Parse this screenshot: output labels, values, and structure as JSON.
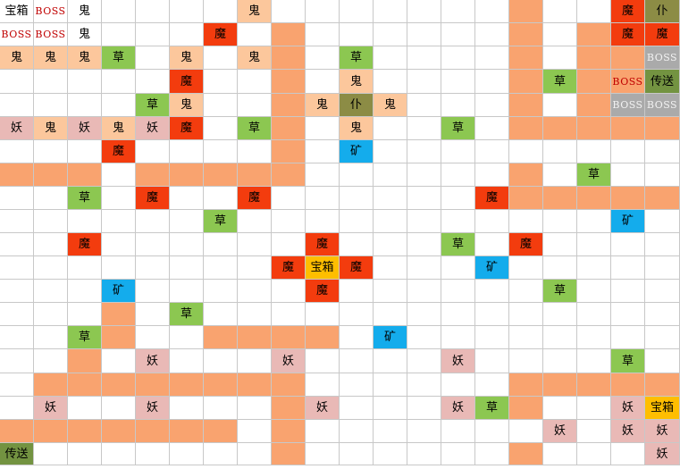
{
  "grid": {
    "rows": 20,
    "cols": 20
  },
  "colors": {
    "path": "#f9a36f",
    "ghost": "#fcc79c",
    "demon": "#f33c0e",
    "grass": "#8cc751",
    "spirit": "#e9b9b6",
    "mine": "#14acec",
    "teleport": "#739341",
    "servant": "#8c8c45",
    "boss_gray": "#aaaaaa",
    "treasure_gold": "#ffbe00",
    "empty": "#ffffff"
  },
  "legend_types": {
    "path": "path-cell",
    "ghost": "ghost-cell",
    "demon": "demon-cell",
    "grass": "grass-cell",
    "spirit": "spirit-cell",
    "mine": "mine-cell",
    "teleport": "teleport-cell",
    "servant": "servant-cell",
    "boss_gray": "boss-cell",
    "boss_red": "boss-cell",
    "treasure": "treasure-cell",
    "treasure_gold": "treasure-cell"
  },
  "cells": [
    {
      "r": 0,
      "c": 0,
      "t": "treasure",
      "text": "宝箱"
    },
    {
      "r": 0,
      "c": 1,
      "t": "boss_red",
      "text": "BOSS"
    },
    {
      "r": 0,
      "c": 2,
      "t": "ghost_plain",
      "text": "鬼"
    },
    {
      "r": 0,
      "c": 7,
      "t": "ghost",
      "text": "鬼"
    },
    {
      "r": 0,
      "c": 15,
      "t": "path"
    },
    {
      "r": 0,
      "c": 18,
      "t": "demon",
      "text": "魔"
    },
    {
      "r": 0,
      "c": 19,
      "t": "servant",
      "text": "仆"
    },
    {
      "r": 1,
      "c": 0,
      "t": "boss_red",
      "text": "BOSS"
    },
    {
      "r": 1,
      "c": 1,
      "t": "boss_red",
      "text": "BOSS"
    },
    {
      "r": 1,
      "c": 2,
      "t": "ghost_plain",
      "text": "鬼"
    },
    {
      "r": 1,
      "c": 6,
      "t": "demon",
      "text": "魔"
    },
    {
      "r": 1,
      "c": 8,
      "t": "path"
    },
    {
      "r": 1,
      "c": 15,
      "t": "path"
    },
    {
      "r": 1,
      "c": 17,
      "t": "path"
    },
    {
      "r": 1,
      "c": 18,
      "t": "demon",
      "text": "魔"
    },
    {
      "r": 1,
      "c": 19,
      "t": "demon",
      "text": "魔"
    },
    {
      "r": 2,
      "c": 0,
      "t": "ghost",
      "text": "鬼"
    },
    {
      "r": 2,
      "c": 1,
      "t": "ghost",
      "text": "鬼"
    },
    {
      "r": 2,
      "c": 2,
      "t": "ghost",
      "text": "鬼"
    },
    {
      "r": 2,
      "c": 3,
      "t": "grass",
      "text": "草"
    },
    {
      "r": 2,
      "c": 5,
      "t": "ghost",
      "text": "鬼"
    },
    {
      "r": 2,
      "c": 7,
      "t": "ghost",
      "text": "鬼"
    },
    {
      "r": 2,
      "c": 8,
      "t": "path"
    },
    {
      "r": 2,
      "c": 10,
      "t": "grass",
      "text": "草"
    },
    {
      "r": 2,
      "c": 15,
      "t": "path"
    },
    {
      "r": 2,
      "c": 17,
      "t": "path"
    },
    {
      "r": 2,
      "c": 18,
      "t": "path"
    },
    {
      "r": 2,
      "c": 19,
      "t": "boss_gray",
      "text": "BOSS"
    },
    {
      "r": 3,
      "c": 5,
      "t": "demon",
      "text": "魔"
    },
    {
      "r": 3,
      "c": 8,
      "t": "path"
    },
    {
      "r": 3,
      "c": 10,
      "t": "ghost",
      "text": "鬼"
    },
    {
      "r": 3,
      "c": 15,
      "t": "path"
    },
    {
      "r": 3,
      "c": 16,
      "t": "grass",
      "text": "草"
    },
    {
      "r": 3,
      "c": 17,
      "t": "path"
    },
    {
      "r": 3,
      "c": 18,
      "t": "path",
      "text": "BOSS",
      "style": "boss"
    },
    {
      "r": 3,
      "c": 19,
      "t": "teleport",
      "text": "传送"
    },
    {
      "r": 4,
      "c": 4,
      "t": "grass",
      "text": "草"
    },
    {
      "r": 4,
      "c": 5,
      "t": "ghost",
      "text": "鬼"
    },
    {
      "r": 4,
      "c": 8,
      "t": "path"
    },
    {
      "r": 4,
      "c": 9,
      "t": "ghost",
      "text": "鬼"
    },
    {
      "r": 4,
      "c": 10,
      "t": "servant",
      "text": "仆"
    },
    {
      "r": 4,
      "c": 11,
      "t": "ghost",
      "text": "鬼"
    },
    {
      "r": 4,
      "c": 15,
      "t": "path"
    },
    {
      "r": 4,
      "c": 17,
      "t": "path"
    },
    {
      "r": 4,
      "c": 18,
      "t": "boss_gray",
      "text": "BOSS"
    },
    {
      "r": 4,
      "c": 19,
      "t": "boss_gray",
      "text": "BOSS"
    },
    {
      "r": 5,
      "c": 0,
      "t": "spirit",
      "text": "妖"
    },
    {
      "r": 5,
      "c": 1,
      "t": "ghost",
      "text": "鬼"
    },
    {
      "r": 5,
      "c": 2,
      "t": "spirit",
      "text": "妖"
    },
    {
      "r": 5,
      "c": 3,
      "t": "ghost",
      "text": "鬼"
    },
    {
      "r": 5,
      "c": 4,
      "t": "spirit",
      "text": "妖"
    },
    {
      "r": 5,
      "c": 5,
      "t": "demon",
      "text": "魔"
    },
    {
      "r": 5,
      "c": 7,
      "t": "grass",
      "text": "草"
    },
    {
      "r": 5,
      "c": 8,
      "t": "path"
    },
    {
      "r": 5,
      "c": 10,
      "t": "ghost",
      "text": "鬼"
    },
    {
      "r": 5,
      "c": 13,
      "t": "grass",
      "text": "草"
    },
    {
      "r": 5,
      "c": 15,
      "t": "path"
    },
    {
      "r": 5,
      "c": 16,
      "t": "path"
    },
    {
      "r": 5,
      "c": 17,
      "t": "path"
    },
    {
      "r": 5,
      "c": 18,
      "t": "path"
    },
    {
      "r": 5,
      "c": 19,
      "t": "path"
    },
    {
      "r": 6,
      "c": 3,
      "t": "demon",
      "text": "魔"
    },
    {
      "r": 6,
      "c": 8,
      "t": "path"
    },
    {
      "r": 6,
      "c": 10,
      "t": "mine",
      "text": "矿"
    },
    {
      "r": 7,
      "c": 0,
      "t": "path"
    },
    {
      "r": 7,
      "c": 1,
      "t": "path"
    },
    {
      "r": 7,
      "c": 2,
      "t": "path"
    },
    {
      "r": 7,
      "c": 4,
      "t": "path"
    },
    {
      "r": 7,
      "c": 5,
      "t": "path"
    },
    {
      "r": 7,
      "c": 6,
      "t": "path"
    },
    {
      "r": 7,
      "c": 7,
      "t": "path"
    },
    {
      "r": 7,
      "c": 8,
      "t": "path"
    },
    {
      "r": 7,
      "c": 15,
      "t": "path"
    },
    {
      "r": 7,
      "c": 17,
      "t": "grass",
      "text": "草"
    },
    {
      "r": 8,
      "c": 2,
      "t": "grass",
      "text": "草"
    },
    {
      "r": 8,
      "c": 4,
      "t": "demon",
      "text": "魔"
    },
    {
      "r": 8,
      "c": 7,
      "t": "demon",
      "text": "魔"
    },
    {
      "r": 8,
      "c": 14,
      "t": "demon",
      "text": "魔"
    },
    {
      "r": 8,
      "c": 15,
      "t": "path"
    },
    {
      "r": 8,
      "c": 16,
      "t": "path"
    },
    {
      "r": 8,
      "c": 17,
      "t": "path"
    },
    {
      "r": 8,
      "c": 18,
      "t": "path"
    },
    {
      "r": 8,
      "c": 19,
      "t": "path"
    },
    {
      "r": 9,
      "c": 6,
      "t": "grass",
      "text": "草"
    },
    {
      "r": 9,
      "c": 18,
      "t": "mine",
      "text": "矿"
    },
    {
      "r": 10,
      "c": 2,
      "t": "demon",
      "text": "魔"
    },
    {
      "r": 10,
      "c": 9,
      "t": "demon",
      "text": "魔"
    },
    {
      "r": 10,
      "c": 13,
      "t": "grass",
      "text": "草"
    },
    {
      "r": 10,
      "c": 15,
      "t": "demon",
      "text": "魔"
    },
    {
      "r": 11,
      "c": 8,
      "t": "demon",
      "text": "魔"
    },
    {
      "r": 11,
      "c": 9,
      "t": "treasure_gold",
      "text": "宝箱"
    },
    {
      "r": 11,
      "c": 10,
      "t": "demon",
      "text": "魔"
    },
    {
      "r": 11,
      "c": 14,
      "t": "mine",
      "text": "矿"
    },
    {
      "r": 12,
      "c": 3,
      "t": "mine",
      "text": "矿"
    },
    {
      "r": 12,
      "c": 9,
      "t": "demon",
      "text": "魔"
    },
    {
      "r": 12,
      "c": 16,
      "t": "grass",
      "text": "草"
    },
    {
      "r": 13,
      "c": 3,
      "t": "path"
    },
    {
      "r": 13,
      "c": 5,
      "t": "grass",
      "text": "草"
    },
    {
      "r": 14,
      "c": 2,
      "t": "grass",
      "text": "草"
    },
    {
      "r": 14,
      "c": 3,
      "t": "path"
    },
    {
      "r": 14,
      "c": 6,
      "t": "path"
    },
    {
      "r": 14,
      "c": 7,
      "t": "path"
    },
    {
      "r": 14,
      "c": 8,
      "t": "path"
    },
    {
      "r": 14,
      "c": 9,
      "t": "path"
    },
    {
      "r": 14,
      "c": 11,
      "t": "mine",
      "text": "矿"
    },
    {
      "r": 15,
      "c": 2,
      "t": "path"
    },
    {
      "r": 15,
      "c": 4,
      "t": "spirit",
      "text": "妖"
    },
    {
      "r": 15,
      "c": 8,
      "t": "spirit",
      "text": "妖"
    },
    {
      "r": 15,
      "c": 13,
      "t": "spirit",
      "text": "妖"
    },
    {
      "r": 15,
      "c": 18,
      "t": "grass",
      "text": "草"
    },
    {
      "r": 16,
      "c": 1,
      "t": "path"
    },
    {
      "r": 16,
      "c": 2,
      "t": "path"
    },
    {
      "r": 16,
      "c": 3,
      "t": "path"
    },
    {
      "r": 16,
      "c": 4,
      "t": "path"
    },
    {
      "r": 16,
      "c": 5,
      "t": "path"
    },
    {
      "r": 16,
      "c": 6,
      "t": "path"
    },
    {
      "r": 16,
      "c": 7,
      "t": "path"
    },
    {
      "r": 16,
      "c": 8,
      "t": "path"
    },
    {
      "r": 16,
      "c": 15,
      "t": "path"
    },
    {
      "r": 16,
      "c": 16,
      "t": "path"
    },
    {
      "r": 16,
      "c": 17,
      "t": "path"
    },
    {
      "r": 16,
      "c": 18,
      "t": "path"
    },
    {
      "r": 16,
      "c": 19,
      "t": "path"
    },
    {
      "r": 17,
      "c": 1,
      "t": "spirit",
      "text": "妖"
    },
    {
      "r": 17,
      "c": 4,
      "t": "spirit",
      "text": "妖"
    },
    {
      "r": 17,
      "c": 8,
      "t": "path"
    },
    {
      "r": 17,
      "c": 9,
      "t": "spirit",
      "text": "妖"
    },
    {
      "r": 17,
      "c": 13,
      "t": "spirit",
      "text": "妖"
    },
    {
      "r": 17,
      "c": 14,
      "t": "grass",
      "text": "草"
    },
    {
      "r": 17,
      "c": 15,
      "t": "path"
    },
    {
      "r": 17,
      "c": 18,
      "t": "spirit",
      "text": "妖"
    },
    {
      "r": 17,
      "c": 19,
      "t": "treasure_gold",
      "text": "宝箱"
    },
    {
      "r": 18,
      "c": 0,
      "t": "path"
    },
    {
      "r": 18,
      "c": 1,
      "t": "path"
    },
    {
      "r": 18,
      "c": 2,
      "t": "path"
    },
    {
      "r": 18,
      "c": 3,
      "t": "path"
    },
    {
      "r": 18,
      "c": 4,
      "t": "path"
    },
    {
      "r": 18,
      "c": 5,
      "t": "path"
    },
    {
      "r": 18,
      "c": 6,
      "t": "path"
    },
    {
      "r": 18,
      "c": 8,
      "t": "path"
    },
    {
      "r": 18,
      "c": 16,
      "t": "spirit",
      "text": "妖"
    },
    {
      "r": 18,
      "c": 18,
      "t": "spirit",
      "text": "妖"
    },
    {
      "r": 18,
      "c": 19,
      "t": "spirit",
      "text": "妖"
    },
    {
      "r": 19,
      "c": 0,
      "t": "teleport",
      "text": "传送"
    },
    {
      "r": 19,
      "c": 8,
      "t": "path"
    },
    {
      "r": 19,
      "c": 15,
      "t": "path"
    },
    {
      "r": 19,
      "c": 19,
      "t": "spirit",
      "text": "妖"
    }
  ]
}
